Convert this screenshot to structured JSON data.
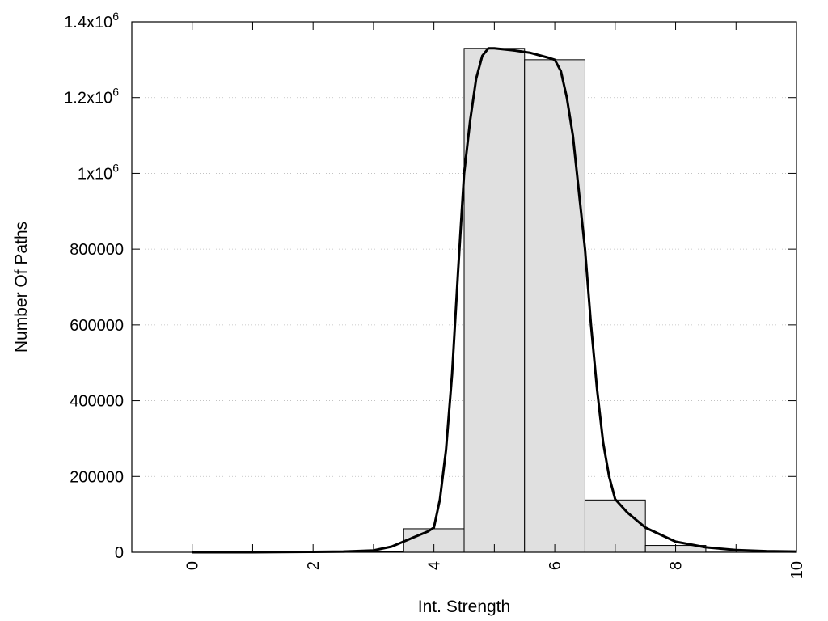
{
  "chart_data": {
    "type": "bar",
    "title": "",
    "xlabel": "Int. Strength",
    "ylabel": "Number Of Paths",
    "xlim": [
      -1,
      10
    ],
    "ylim": [
      0,
      1400000
    ],
    "grid": true,
    "legend": "none",
    "x_ticks": [
      0,
      2,
      4,
      6,
      8,
      10
    ],
    "x_tick_labels": [
      "0",
      "2",
      "4",
      "6",
      "8",
      "10"
    ],
    "minor_x_ticks": [
      1,
      3,
      5,
      7,
      9
    ],
    "y_ticks": [
      {
        "value": 0,
        "label": "0"
      },
      {
        "value": 200000,
        "label": "200000"
      },
      {
        "value": 400000,
        "label": "400000"
      },
      {
        "value": 600000,
        "label": "600000"
      },
      {
        "value": 800000,
        "label": "800000"
      },
      {
        "value": 1000000,
        "label": "1x10",
        "exp": "6"
      },
      {
        "value": 1200000,
        "label": "1.2x10",
        "exp": "6"
      },
      {
        "value": 1400000,
        "label": "1.4x10",
        "exp": "6"
      }
    ],
    "bin_width": 1,
    "bars": [
      {
        "x": 0,
        "value": 0
      },
      {
        "x": 1,
        "value": 0
      },
      {
        "x": 2,
        "value": 0
      },
      {
        "x": 3,
        "value": 2000
      },
      {
        "x": 4,
        "value": 62000
      },
      {
        "x": 5,
        "value": 1330000
      },
      {
        "x": 6,
        "value": 1300000
      },
      {
        "x": 7,
        "value": 138000
      },
      {
        "x": 8,
        "value": 18000
      },
      {
        "x": 9,
        "value": 3000
      },
      {
        "x": 10,
        "value": 0
      }
    ],
    "curve": {
      "x": [
        0,
        1,
        2,
        2.5,
        3,
        3.3,
        3.6,
        3.9,
        4.0,
        4.1,
        4.2,
        4.3,
        4.4,
        4.5,
        4.6,
        4.7,
        4.8,
        4.9,
        5.0,
        5.3,
        5.6,
        5.9,
        6.0,
        6.1,
        6.2,
        6.3,
        6.4,
        6.5,
        6.6,
        6.7,
        6.8,
        6.9,
        7.0,
        7.2,
        7.5,
        8.0,
        8.5,
        9.0,
        9.5,
        10.0
      ],
      "y": [
        0,
        0,
        1000,
        2000,
        5000,
        15000,
        35000,
        55000,
        65000,
        140000,
        270000,
        470000,
        740000,
        1000000,
        1140000,
        1250000,
        1310000,
        1330000,
        1330000,
        1325000,
        1318000,
        1305000,
        1300000,
        1270000,
        1200000,
        1100000,
        950000,
        800000,
        600000,
        430000,
        290000,
        200000,
        140000,
        105000,
        65000,
        28000,
        13000,
        6000,
        3000,
        2000
      ]
    },
    "colors": {
      "bar_fill": "#e0e0e0",
      "bar_stroke": "#000000",
      "curve": "#000000",
      "grid": "#bbbbbb"
    }
  }
}
